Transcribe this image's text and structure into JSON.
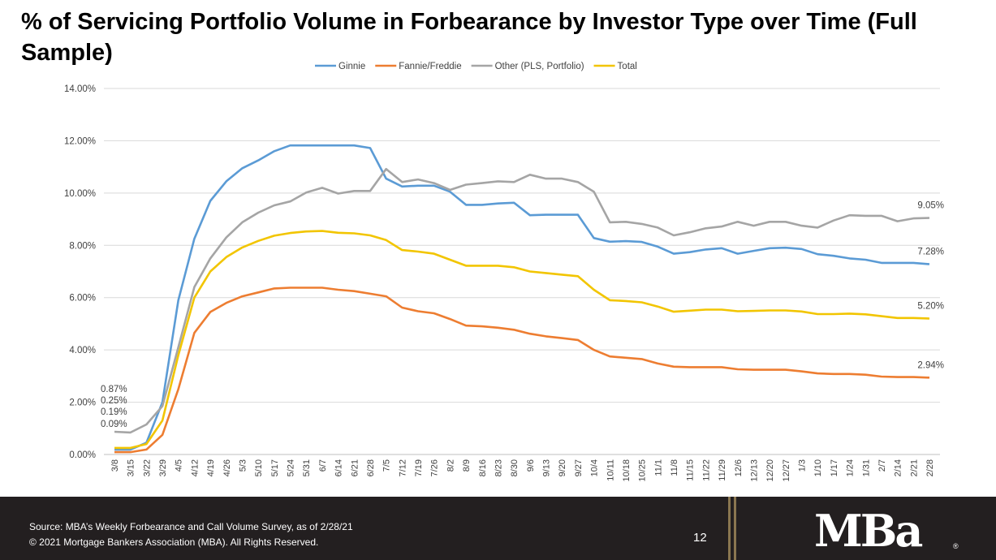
{
  "title": "% of Servicing Portfolio Volume in Forbearance by Investor Type over Time (Full Sample)",
  "footer": {
    "source": "Source: MBA’s Weekly Forbearance and Call Volume Survey, as of 2/28/21",
    "copyright": "© 2021 Mortgage Bankers Association (MBA). All Rights Reserved.",
    "page_number": "12",
    "logo_text": "MBa",
    "logo_mark": "®"
  },
  "chart_data": {
    "type": "line",
    "title": "% of Servicing Portfolio Volume in Forbearance by Investor Type over Time (Full Sample)",
    "ylim": [
      0,
      14
    ],
    "yticks": [
      "0.00%",
      "2.00%",
      "4.00%",
      "6.00%",
      "8.00%",
      "10.00%",
      "12.00%",
      "14.00%"
    ],
    "grid": true,
    "legend_position": "top",
    "categories": [
      "3/8",
      "3/15",
      "3/22",
      "3/29",
      "4/5",
      "4/12",
      "4/19",
      "4/26",
      "5/3",
      "5/10",
      "5/17",
      "5/24",
      "5/31",
      "6/7",
      "6/14",
      "6/21",
      "6/28",
      "7/5",
      "7/12",
      "7/19",
      "7/26",
      "8/2",
      "8/9",
      "8/16",
      "8/23",
      "8/30",
      "9/6",
      "9/13",
      "9/20",
      "9/27",
      "10/4",
      "10/11",
      "10/18",
      "10/25",
      "11/1",
      "11/8",
      "11/15",
      "11/22",
      "11/29",
      "12/6",
      "12/13",
      "12/20",
      "12/27",
      "1/3",
      "1/10",
      "1/17",
      "1/24",
      "1/31",
      "2/7",
      "2/14",
      "2/21",
      "2/28"
    ],
    "series": [
      {
        "name": "Ginnie",
        "color": "#5b9bd5",
        "values": [
          0.19,
          0.19,
          0.45,
          2.0,
          5.9,
          8.25,
          9.7,
          10.45,
          10.95,
          11.25,
          11.6,
          11.82,
          11.82,
          11.82,
          11.82,
          11.82,
          11.72,
          10.55,
          10.25,
          10.28,
          10.28,
          10.05,
          9.55,
          9.55,
          9.6,
          9.63,
          9.15,
          9.17,
          9.17,
          9.17,
          8.28,
          8.14,
          8.16,
          8.13,
          7.95,
          7.68,
          7.74,
          7.84,
          7.89,
          7.68,
          7.79,
          7.89,
          7.91,
          7.86,
          7.66,
          7.6,
          7.5,
          7.45,
          7.33,
          7.33,
          7.33,
          7.28
        ]
      },
      {
        "name": "Fannie/Freddie",
        "color": "#ed7d31",
        "values": [
          0.09,
          0.09,
          0.19,
          0.75,
          2.5,
          4.65,
          5.45,
          5.8,
          6.05,
          6.2,
          6.35,
          6.38,
          6.38,
          6.38,
          6.3,
          6.25,
          6.15,
          6.05,
          5.62,
          5.48,
          5.4,
          5.18,
          4.93,
          4.9,
          4.85,
          4.77,
          4.62,
          4.52,
          4.45,
          4.38,
          4.0,
          3.75,
          3.7,
          3.65,
          3.48,
          3.36,
          3.34,
          3.34,
          3.34,
          3.26,
          3.24,
          3.24,
          3.24,
          3.18,
          3.1,
          3.08,
          3.08,
          3.05,
          2.98,
          2.96,
          2.96,
          2.94
        ]
      },
      {
        "name": "Other (PLS, Portfolio)",
        "color": "#a5a5a5",
        "values": [
          0.87,
          0.84,
          1.15,
          1.85,
          4.1,
          6.4,
          7.5,
          8.3,
          8.88,
          9.25,
          9.53,
          9.68,
          10.02,
          10.2,
          9.98,
          10.08,
          10.08,
          10.92,
          10.42,
          10.52,
          10.38,
          10.12,
          10.32,
          10.38,
          10.45,
          10.42,
          10.7,
          10.55,
          10.55,
          10.42,
          10.05,
          8.88,
          8.9,
          8.82,
          8.68,
          8.38,
          8.5,
          8.65,
          8.72,
          8.9,
          8.75,
          8.9,
          8.9,
          8.75,
          8.68,
          8.95,
          9.15,
          9.13,
          9.13,
          8.92,
          9.03,
          9.05
        ]
      },
      {
        "name": "Total",
        "color": "#f2c500",
        "values": [
          0.25,
          0.25,
          0.4,
          1.3,
          3.8,
          6.0,
          7.0,
          7.55,
          7.92,
          8.17,
          8.37,
          8.47,
          8.53,
          8.55,
          8.48,
          8.46,
          8.38,
          8.2,
          7.82,
          7.76,
          7.68,
          7.45,
          7.22,
          7.22,
          7.22,
          7.16,
          7.0,
          6.94,
          6.88,
          6.82,
          6.3,
          5.9,
          5.87,
          5.82,
          5.66,
          5.46,
          5.5,
          5.54,
          5.54,
          5.48,
          5.49,
          5.51,
          5.51,
          5.47,
          5.37,
          5.37,
          5.39,
          5.36,
          5.29,
          5.22,
          5.22,
          5.2
        ]
      }
    ],
    "start_labels": [
      "0.87%",
      "0.25%",
      "0.19%",
      "0.09%"
    ],
    "end_labels": [
      {
        "series": "Other (PLS, Portfolio)",
        "text": "9.05%"
      },
      {
        "series": "Ginnie",
        "text": "7.28%"
      },
      {
        "series": "Total",
        "text": "5.20%"
      },
      {
        "series": "Fannie/Freddie",
        "text": "2.94%"
      }
    ]
  }
}
